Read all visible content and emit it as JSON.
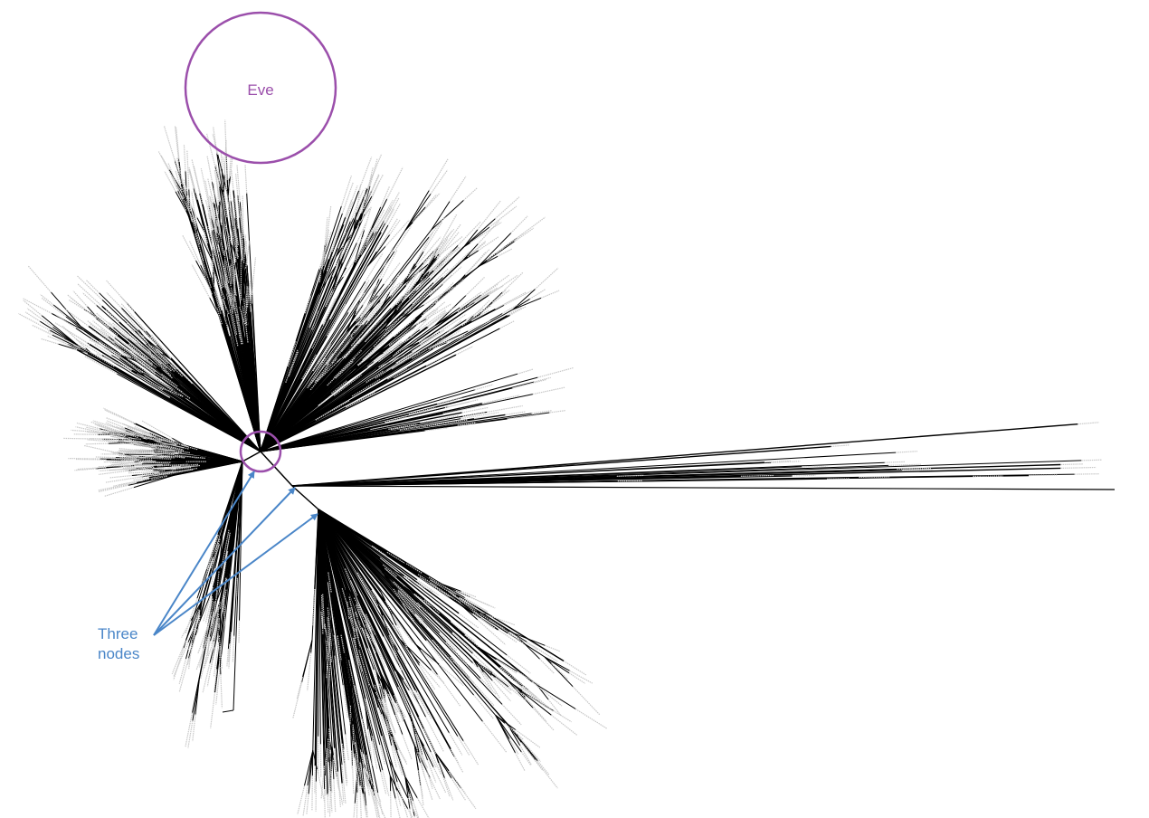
{
  "annotations": {
    "eve": {
      "text": "Eve",
      "color": "#9b4fab"
    },
    "three_nodes": {
      "line1": "Three",
      "line2": "nodes",
      "color": "#4a86c8"
    }
  },
  "tree": {
    "branch_color": "#000000"
  }
}
